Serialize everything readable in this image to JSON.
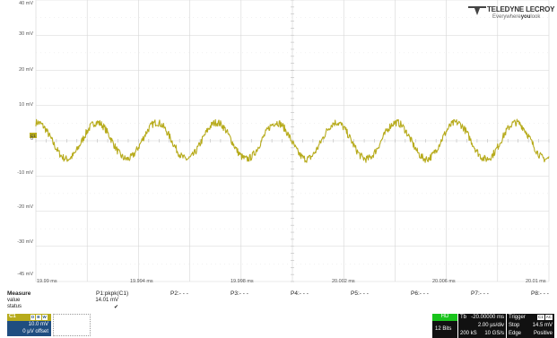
{
  "brand": {
    "name": "TELEDYNE LECROY",
    "tagline_pre": "Everywhere",
    "tagline_bold": "you",
    "tagline_post": "look"
  },
  "y_axis_labels": [
    "40 mV",
    "30 mV",
    "20 mV",
    "10 mV",
    "0",
    "-10 mV",
    "-20 mV",
    "-30 mV",
    "-45 mV"
  ],
  "x_axis_labels": [
    "19.99 ms",
    "19.994 ms",
    "19.998 ms",
    "20.002 ms",
    "20.006 ms",
    "20.01 ms"
  ],
  "channel_marker": "C1",
  "trace_color": "#b7ab1c",
  "measure": {
    "title": "Measure",
    "value_label": "value",
    "status_label": "status",
    "params": [
      "P1:pkpk(C1)",
      "P2:- - -",
      "P3:- - -",
      "P4:- - -",
      "P5:- - -",
      "P6:- - -",
      "P7:- - -",
      "P8:- - -"
    ],
    "p1_value": "14.01 mV",
    "p1_status": "✔"
  },
  "channel": {
    "name": "C1",
    "tags": [
      "D",
      "B",
      "W"
    ],
    "vdiv": "10.0 mV",
    "offset": "0 µV offset"
  },
  "acquisition": {
    "mode": "HD",
    "bits": "12 Bits",
    "tb_label": "Tb",
    "tb_delay": "-20.00000 ms",
    "tdiv": "2.00 µs/div",
    "samples": "200 kS",
    "rate": "10 GS/s",
    "trigger_label": "Trigger",
    "trigger_tags": [
      "C1",
      "AC"
    ],
    "trigger_mode": "Stop",
    "trigger_level": "14.5 mV",
    "trigger_type": "Edge",
    "trigger_slope": "Positive"
  },
  "chart_data": {
    "type": "line",
    "xlabel": "",
    "ylabel": "",
    "x_range_ms": [
      19.99,
      20.011
    ],
    "y_range_mv": [
      -45,
      40
    ],
    "grid": true,
    "series": [
      {
        "color": "#b7ab1c",
        "period_ms": 0.00245,
        "center_mv": -2.5,
        "amplitude_mv": 5.5,
        "peaks_ms": [
          19.9925,
          19.9949,
          19.9974,
          19.9998,
          20.0023,
          20.0047,
          20.0072,
          20.0096
        ],
        "troughs_ms": [
          19.9913,
          19.9937,
          19.9962,
          19.9986,
          20.0011,
          20.0035,
          20.0059,
          20.0084,
          20.0108
        ],
        "peak_peak_mv": 14.01
      }
    ]
  }
}
